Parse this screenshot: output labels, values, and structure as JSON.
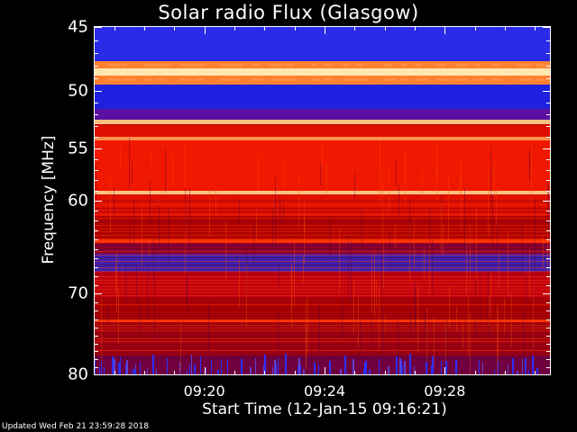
{
  "chart_data": {
    "type": "heatmap",
    "title": "Solar radio Flux (Glasgow)",
    "xlabel": "Start Time (12-Jan-15 09:16:21)",
    "ylabel": "Frequency [MHz]",
    "ylim": [
      80,
      45
    ],
    "xlim": [
      "09:16:21",
      "09:31:30"
    ],
    "y_ticks": [
      {
        "label": "45",
        "value": 45
      },
      {
        "label": "50",
        "value": 50
      },
      {
        "label": "55",
        "value": 55
      },
      {
        "label": "60",
        "value": 60
      },
      {
        "label": "70",
        "value": 70
      },
      {
        "label": "80",
        "value": 80
      }
    ],
    "x_ticks": [
      {
        "label": "09:20",
        "value": "09:20"
      },
      {
        "label": "09:24",
        "value": "09:24"
      },
      {
        "label": "09:28",
        "value": "09:28"
      }
    ],
    "colorscale": [
      "#000080",
      "#2020ff",
      "#6020a0",
      "#b00000",
      "#ff2000",
      "#ffb060",
      "#ffe8b0"
    ],
    "frequency_bands": [
      {
        "f0": 45.0,
        "f1": 47.6,
        "color": "#2a2ae8"
      },
      {
        "f0": 47.6,
        "f1": 48.2,
        "color": "#ff8030"
      },
      {
        "f0": 48.2,
        "f1": 48.8,
        "color": "#ffe8b0"
      },
      {
        "f0": 48.8,
        "f1": 49.5,
        "color": "#ff8030"
      },
      {
        "f0": 49.5,
        "f1": 51.5,
        "color": "#2020e0"
      },
      {
        "f0": 51.5,
        "f1": 52.5,
        "color": "#5a10a0"
      },
      {
        "f0": 52.5,
        "f1": 52.9,
        "color": "#ffc080"
      },
      {
        "f0": 52.9,
        "f1": 54.0,
        "color": "#e01000"
      },
      {
        "f0": 54.0,
        "f1": 54.3,
        "color": "#ff9050"
      },
      {
        "f0": 54.3,
        "f1": 59.0,
        "color": "#f01800"
      },
      {
        "f0": 59.0,
        "f1": 59.4,
        "color": "#ffc080"
      },
      {
        "f0": 59.4,
        "f1": 61.5,
        "color": "#e01000"
      },
      {
        "f0": 61.5,
        "f1": 64.0,
        "color": "#b00000"
      },
      {
        "f0": 64.0,
        "f1": 64.4,
        "color": "#ff3000"
      },
      {
        "f0": 64.4,
        "f1": 65.5,
        "color": "#8a0030"
      },
      {
        "f0": 65.5,
        "f1": 67.5,
        "color": "#4020b0"
      },
      {
        "f0": 67.5,
        "f1": 70.5,
        "color": "#c00010"
      },
      {
        "f0": 70.5,
        "f1": 73.0,
        "color": "#b00000"
      },
      {
        "f0": 73.0,
        "f1": 73.4,
        "color": "#ff3000"
      },
      {
        "f0": 73.4,
        "f1": 77.5,
        "color": "#a00010"
      },
      {
        "f0": 77.5,
        "f1": 80.0,
        "color": "#700040"
      }
    ],
    "burst_frequencies_mhz": [
      47.9,
      49.1
    ],
    "noise_region_mhz": [
      77.5,
      80.0
    ]
  },
  "footer": "Updated Wed Feb 21 23:59:28 2018"
}
